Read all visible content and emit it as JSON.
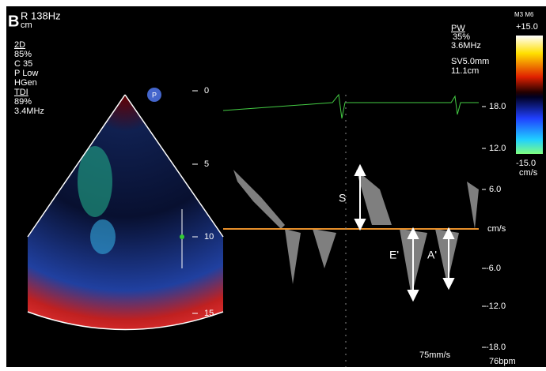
{
  "panel_label": "B",
  "header": {
    "frame_rate": "R 138Hz",
    "unit": "cm"
  },
  "settings_2d": {
    "title": "2D",
    "gain": "85%",
    "compression": "C 35",
    "power": "P Low",
    "frequency": "HGen"
  },
  "settings_tdi": {
    "title": "TDI",
    "gain": "89%",
    "frequency": "3.4MHz"
  },
  "probe_marker": "P",
  "depth_scale": [
    "0",
    "5",
    "10",
    "15"
  ],
  "pw": {
    "title": "PW",
    "gain": "35%",
    "frequency": "3.6MHz",
    "sample_volume": "SV5.0mm",
    "depth": "11.1cm"
  },
  "color_bar": {
    "mode": "M3 M6",
    "max": "+15.0",
    "min": "-15.0",
    "unit": "cm/s"
  },
  "velocity_scale": [
    "18.0",
    "12.0",
    "6.0",
    "cm/s",
    "-6.0",
    "-12.0",
    "-18.0"
  ],
  "annotations": {
    "s_wave": "S",
    "e_wave": "E'",
    "a_wave": "A'"
  },
  "footer": {
    "sweep_speed": "75mm/s",
    "heart_rate": "76bpm"
  }
}
